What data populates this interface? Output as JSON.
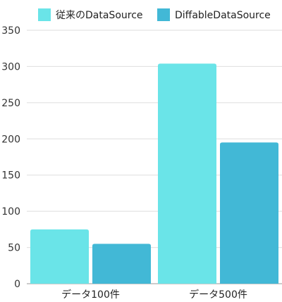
{
  "chart_data": {
    "type": "bar",
    "categories": [
      "データ100件",
      "データ500件"
    ],
    "series": [
      {
        "name": "従来のDataSource",
        "values": [
          75,
          304
        ],
        "color": "#6ae4e8"
      },
      {
        "name": "DiffableDataSource",
        "values": [
          55,
          195
        ],
        "color": "#42b8d6"
      }
    ],
    "ylim": [
      0,
      350
    ],
    "yticks": [
      0,
      50,
      100,
      150,
      200,
      250,
      300,
      350
    ],
    "grid": true,
    "legend": "top-center"
  }
}
